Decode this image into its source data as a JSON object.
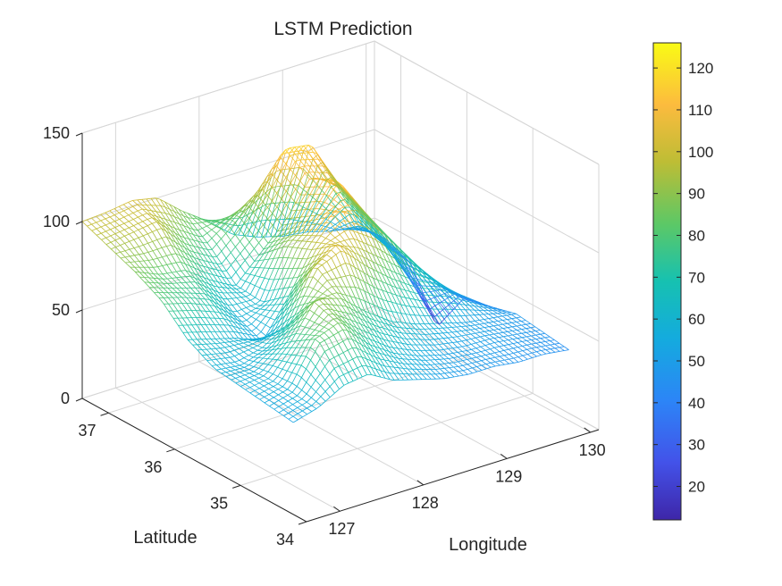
{
  "chart_data": {
    "type": "surface-mesh",
    "title": "LSTM Prediction",
    "xlabel": "Longitude",
    "ylabel": "Latitude",
    "zlabel": "",
    "xlim": [
      126.6,
      130.1
    ],
    "ylim": [
      34,
      37.4
    ],
    "zlim": [
      0,
      150
    ],
    "x_ticks": [
      127,
      128,
      129,
      130
    ],
    "y_ticks": [
      34,
      35,
      36,
      37
    ],
    "z_ticks": [
      0,
      50,
      100,
      150
    ],
    "grid": true,
    "colormap": "parula",
    "colorbar": {
      "range": [
        12,
        126
      ],
      "ticks": [
        20,
        30,
        40,
        50,
        60,
        70,
        80,
        90,
        100,
        110,
        120
      ],
      "position": "right"
    },
    "surface": {
      "longitude": [
        126.6,
        126.9,
        127.2,
        127.5,
        127.8,
        128.1,
        128.4,
        128.7,
        129.0,
        129.3,
        129.6,
        129.9
      ],
      "latitude": [
        37.4,
        37.0,
        36.6,
        36.2,
        35.8,
        35.4,
        35.0,
        34.6,
        34.2
      ],
      "z": [
        [
          100,
          101,
          103,
          100,
          88,
          78,
          66,
          60,
          56,
          54,
          50,
          48
        ],
        [
          94,
          96,
          98,
          84,
          76,
          88,
          100,
          120,
          118,
          90,
          62,
          50
        ],
        [
          88,
          82,
          80,
          70,
          62,
          76,
          90,
          110,
          104,
          82,
          58,
          44
        ],
        [
          80,
          76,
          70,
          58,
          60,
          90,
          100,
          118,
          96,
          76,
          46,
          16
        ],
        [
          66,
          62,
          58,
          52,
          72,
          96,
          112,
          104,
          88,
          70,
          52,
          40
        ],
        [
          58,
          56,
          60,
          70,
          98,
          106,
          92,
          80,
          70,
          64,
          54,
          44
        ],
        [
          56,
          58,
          72,
          92,
          88,
          76,
          66,
          60,
          56,
          52,
          50,
          48
        ],
        [
          54,
          58,
          82,
          86,
          72,
          62,
          56,
          52,
          50,
          50,
          48,
          46
        ],
        [
          52,
          56,
          64,
          66,
          58,
          54,
          50,
          48,
          48,
          46,
          46,
          44
        ]
      ]
    }
  }
}
